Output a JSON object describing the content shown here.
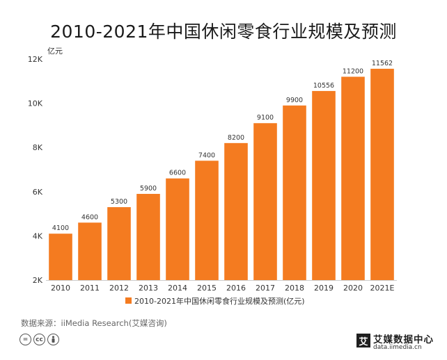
{
  "chart_data": {
    "type": "bar",
    "title": "2010-2021年中国休闲零食行业规模及预测",
    "ylabel": "亿元",
    "xlabel": "",
    "categories": [
      "2010",
      "2011",
      "2012",
      "2013",
      "2014",
      "2015",
      "2016",
      "2017",
      "2018",
      "2019",
      "2020",
      "2021E"
    ],
    "values": [
      4100,
      4600,
      5300,
      5900,
      6600,
      7400,
      8200,
      9100,
      9900,
      10556,
      11200,
      11562
    ],
    "data_labels": [
      "4100",
      "4600",
      "5300",
      "5900",
      "6600",
      "7400",
      "8200",
      "9100",
      "9900",
      "10556",
      "11200",
      "11562"
    ],
    "ylim": [
      2000,
      12000
    ],
    "yticks": [
      2000,
      4000,
      6000,
      8000,
      10000,
      12000
    ],
    "ytick_labels": [
      "2K",
      "4K",
      "6K",
      "8K",
      "10K",
      "12K"
    ],
    "series": [
      {
        "name": "2010-2021年中国休闲零食行业规模及预测(亿元)",
        "color": "#F47B20"
      }
    ],
    "legend_position": "bottom-center",
    "grid": false
  },
  "footer": {
    "source": "数据来源：iiMedia Research(艾媒咨询)",
    "brand_name": "艾媒数据中心",
    "brand_url": "data.iimedia.cn",
    "brand_logo": "艾",
    "license_icons": [
      "=",
      "cc",
      "person-icon"
    ]
  }
}
